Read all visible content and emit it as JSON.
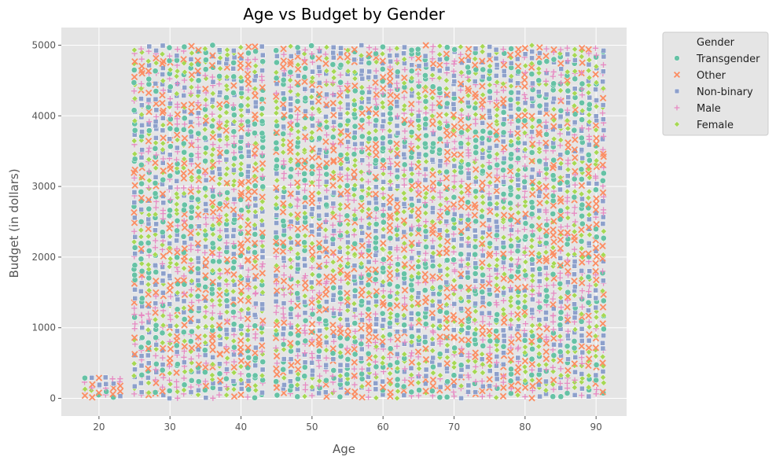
{
  "chart_data": {
    "type": "scatter",
    "title": "Age vs Budget by Gender",
    "xlabel": "Age",
    "ylabel": "Budget (in dollars)",
    "xlim": [
      14.7,
      94.3
    ],
    "ylim": [
      -250,
      5250
    ],
    "xticks": [
      20,
      30,
      40,
      50,
      60,
      70,
      80,
      90
    ],
    "yticks": [
      0,
      1000,
      2000,
      3000,
      4000,
      5000
    ],
    "grid": true,
    "legend": {
      "title": "Gender",
      "placement": "outside-top-right"
    },
    "series": [
      {
        "name": "Transgender",
        "marker": "circle",
        "color": "#66c2a5"
      },
      {
        "name": "Other",
        "marker": "x",
        "color": "#fc8d62"
      },
      {
        "name": "Non-binary",
        "marker": "square",
        "color": "#8da0cb"
      },
      {
        "name": "Male",
        "marker": "plus",
        "color": "#e78ac3"
      },
      {
        "name": "Female",
        "marker": "diamond",
        "color": "#a6d854"
      }
    ],
    "data_ranges": [
      {
        "ages": [
          18,
          23
        ],
        "budget": [
          0,
          300
        ]
      },
      {
        "ages": [
          25,
          43
        ],
        "budget": [
          0,
          5000
        ]
      },
      {
        "ages": [
          45,
          91
        ],
        "budget": [
          0,
          5000
        ]
      }
    ]
  }
}
